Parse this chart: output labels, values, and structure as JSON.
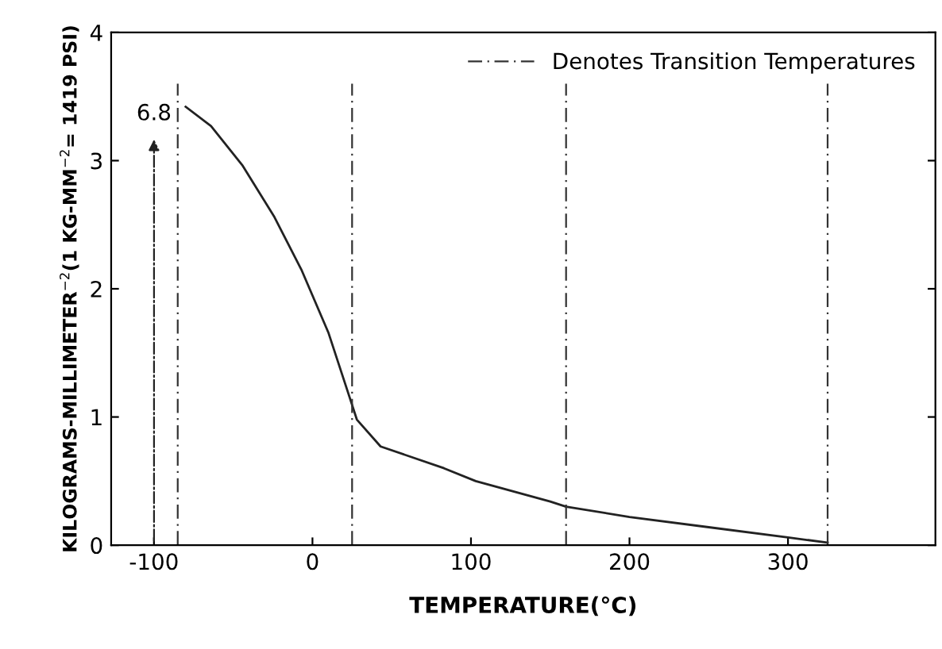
{
  "chart_data": {
    "type": "line",
    "xlabel": "TEMPERATURE(°C)",
    "ylabel": "KILOGRAMS-MILLIMETER$^{−2}$(1 KG-MM$^{−2}$= 1419 PSI)",
    "x": [
      -80,
      -64,
      -44,
      -24,
      -7,
      10,
      23,
      28,
      43,
      83,
      103,
      150,
      160,
      200,
      250,
      300,
      325
    ],
    "series": [
      {
        "color": "#222222",
        "values": [
          3.42,
          3.27,
          2.96,
          2.56,
          2.15,
          1.66,
          1.17,
          0.98,
          0.77,
          0.6,
          0.5,
          0.34,
          0.3,
          0.22,
          0.14,
          0.06,
          0.02
        ]
      }
    ],
    "xlim": [
      -127,
      393
    ],
    "ylim": [
      0,
      4
    ],
    "xticks": [
      -100,
      0,
      100,
      200,
      300
    ],
    "yticks": [
      0,
      1,
      2,
      3,
      4
    ],
    "grid": false,
    "legend": "top right",
    "line_style": "solid",
    "marker": "none",
    "ref_lines": [
      {
        "axis": "x",
        "value": -85,
        "label": "Denotes Transition Temperatures",
        "color": "#333333",
        "line_style": "dashed"
      },
      {
        "axis": "x",
        "value": 25,
        "color": "#333333",
        "line_style": "dashed"
      },
      {
        "axis": "x",
        "value": 160,
        "color": "#333333",
        "line_style": "dashed"
      },
      {
        "axis": "x",
        "value": 325,
        "color": "#333333",
        "line_style": "dashed"
      }
    ],
    "annotations": [
      "6.8"
    ]
  }
}
